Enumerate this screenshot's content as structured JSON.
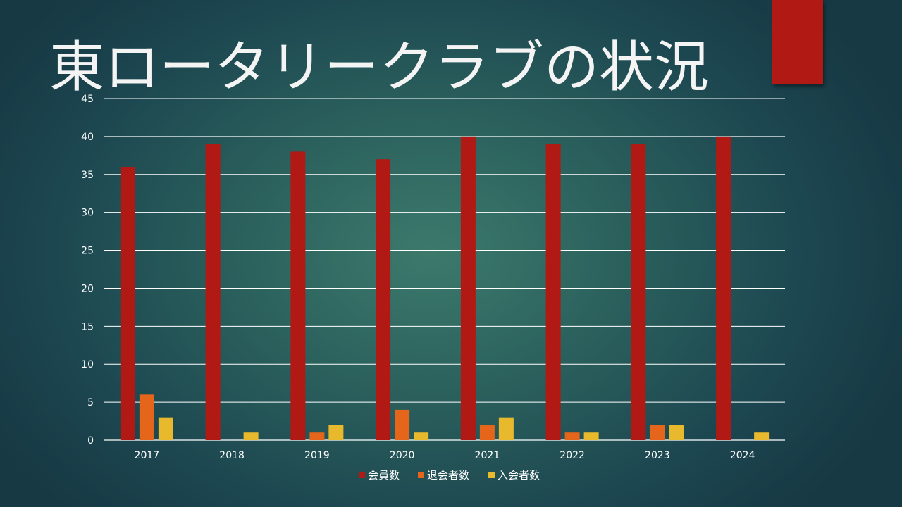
{
  "slide": {
    "title": "東ロータリークラブの状況",
    "accent_color": "#b01914"
  },
  "chart_data": {
    "type": "bar",
    "title": "",
    "xlabel": "",
    "ylabel": "",
    "categories": [
      "2017",
      "2018",
      "2019",
      "2020",
      "2021",
      "2022",
      "2023",
      "2024"
    ],
    "series": [
      {
        "name": "会員数",
        "color": "#b01914",
        "values": [
          36,
          39,
          38,
          37,
          40,
          39,
          39,
          40
        ]
      },
      {
        "name": "退会者数",
        "color": "#e5651a",
        "values": [
          6,
          0,
          1,
          4,
          2,
          1,
          2,
          0
        ]
      },
      {
        "name": "入会者数",
        "color": "#e8b92c",
        "values": [
          3,
          1,
          2,
          1,
          3,
          1,
          2,
          1
        ]
      }
    ],
    "ylim": [
      0,
      45
    ],
    "yticks": [
      "0",
      "5",
      "10",
      "15",
      "20",
      "25",
      "30",
      "35",
      "40",
      "45"
    ],
    "grid": true,
    "legend_position": "bottom"
  }
}
